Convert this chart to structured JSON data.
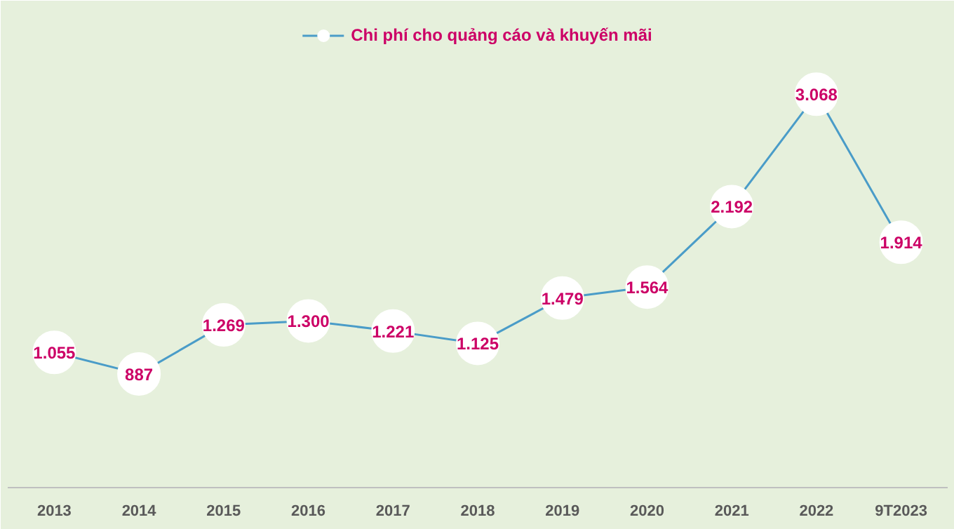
{
  "chart_data": {
    "type": "line",
    "categories": [
      "2013",
      "2014",
      "2015",
      "2016",
      "2017",
      "2018",
      "2019",
      "2020",
      "2021",
      "2022",
      "9T2023"
    ],
    "series": [
      {
        "name": "Chi phí cho quảng cáo và khuyến mãi",
        "color": "#4a9cc8",
        "values": [
          1055,
          887,
          1269,
          1300,
          1221,
          1125,
          1479,
          1564,
          2192,
          3068,
          1914
        ],
        "value_labels": [
          "1.055",
          "887",
          "1.269",
          "1.300",
          "1.221",
          "1.125",
          "1.479",
          "1.564",
          "2.192",
          "3.068",
          "1.914"
        ]
      }
    ],
    "marker": "circle",
    "line_style": "solid",
    "legend": "top"
  }
}
